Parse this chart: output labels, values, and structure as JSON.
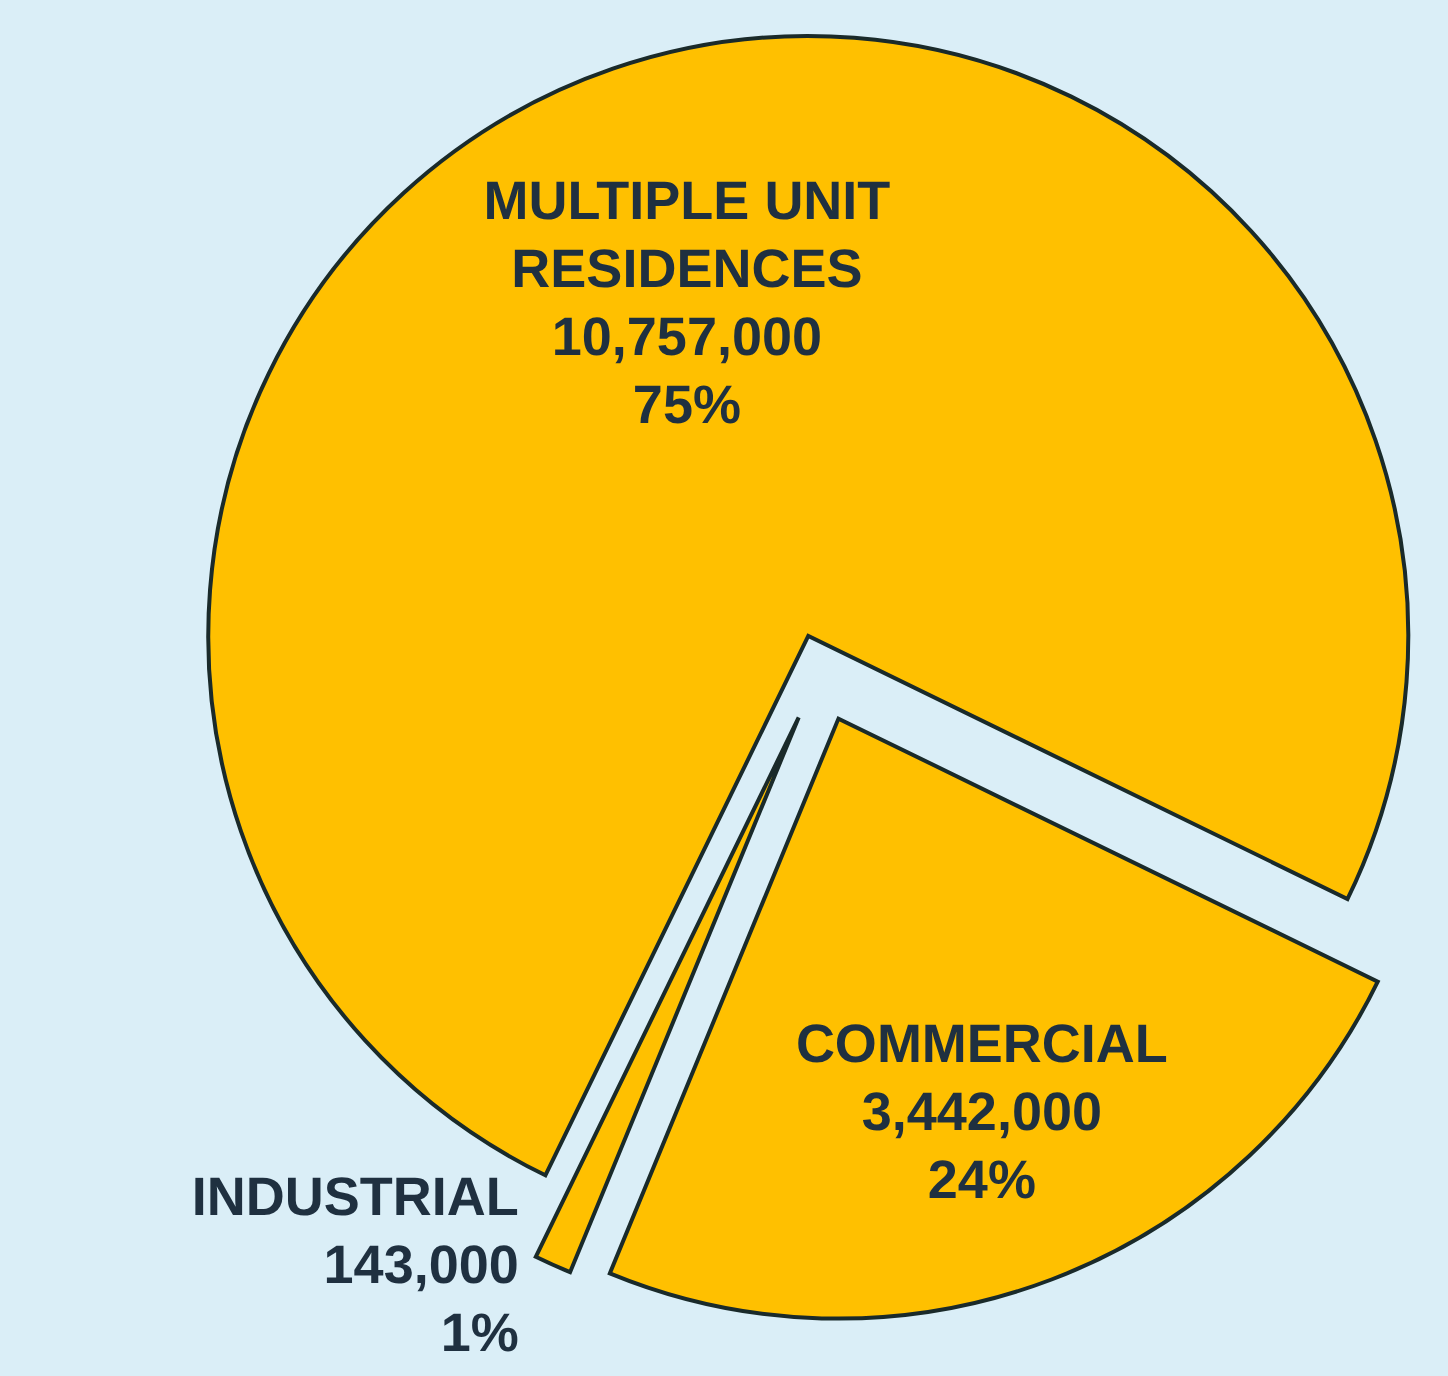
{
  "chart_data": {
    "type": "pie",
    "categories": [
      "MULTIPLE UNIT RESIDENCES",
      "INDUSTRIAL",
      "COMMERCIAL"
    ],
    "values": [
      10757000,
      143000,
      3442000
    ],
    "colors": [
      "#ffc000",
      "#ffc000",
      "#ffc000"
    ],
    "value_labels": [
      "10,757,000\n75%",
      "143,000\n1%",
      "3,442,000\n24%"
    ]
  }
}
